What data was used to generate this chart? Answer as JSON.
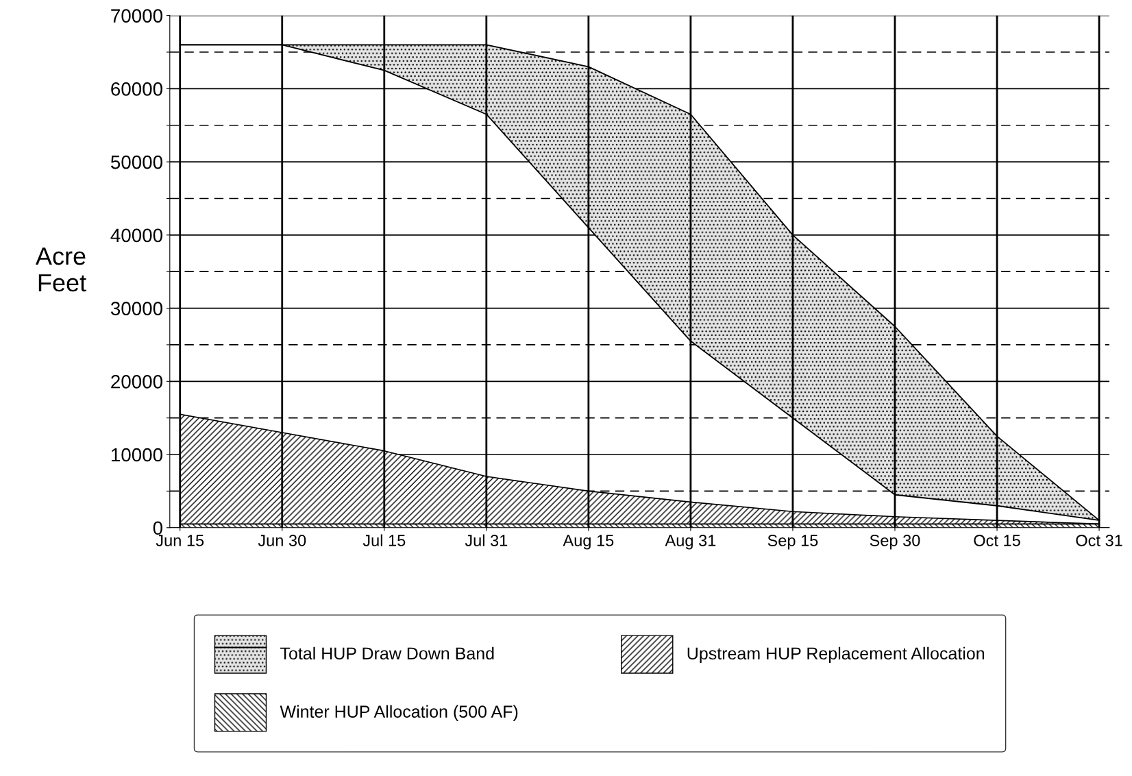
{
  "chart_data": {
    "type": "area",
    "ylabel": "Acre\nFeet",
    "categories": [
      "Jun 15",
      "Jun 30",
      "Jul 15",
      "Jul 31",
      "Aug 15",
      "Aug 31",
      "Sep 15",
      "Sep 30",
      "Oct 15",
      "Oct 31"
    ],
    "grid": true,
    "legend": "bottom",
    "ylim": [
      0,
      70000
    ],
    "yticks": [
      0,
      {
        "value": 5000,
        "label": null
      },
      10000,
      {
        "value": 15000,
        "label": null
      },
      20000,
      {
        "value": 25000,
        "label": null
      },
      30000,
      {
        "value": 35000,
        "label": null
      },
      40000,
      {
        "value": 45000,
        "label": null
      },
      50000,
      {
        "value": 55000,
        "label": null
      },
      60000,
      {
        "value": 65000,
        "label": null
      },
      70000
    ],
    "series": [
      {
        "name": "Total HUP Draw Down Band",
        "type": "line",
        "color": "#000000",
        "values": [
          66000,
          66000,
          66000,
          66000,
          63000,
          56500,
          40000,
          27500,
          12500,
          1000
        ],
        "upper": [
          66000,
          66000,
          66000,
          66000,
          63000,
          56500,
          40000,
          27500,
          12500,
          1000
        ],
        "lower": [
          66000,
          66000,
          62500,
          56500,
          41000,
          25500,
          15000,
          4500,
          3000,
          1000
        ]
      },
      {
        "name": "Winter HUP Allocation (500 AF)",
        "color": "#000000",
        "values": [
          500,
          500,
          500,
          500,
          500,
          500,
          500,
          500,
          500,
          500
        ]
      },
      {
        "name": "Upstream HUP Replacement Allocation",
        "color": "#000000",
        "values": [
          15500,
          13000,
          10500,
          7000,
          5000,
          3500,
          2200,
          1500,
          1000,
          500
        ]
      }
    ]
  }
}
